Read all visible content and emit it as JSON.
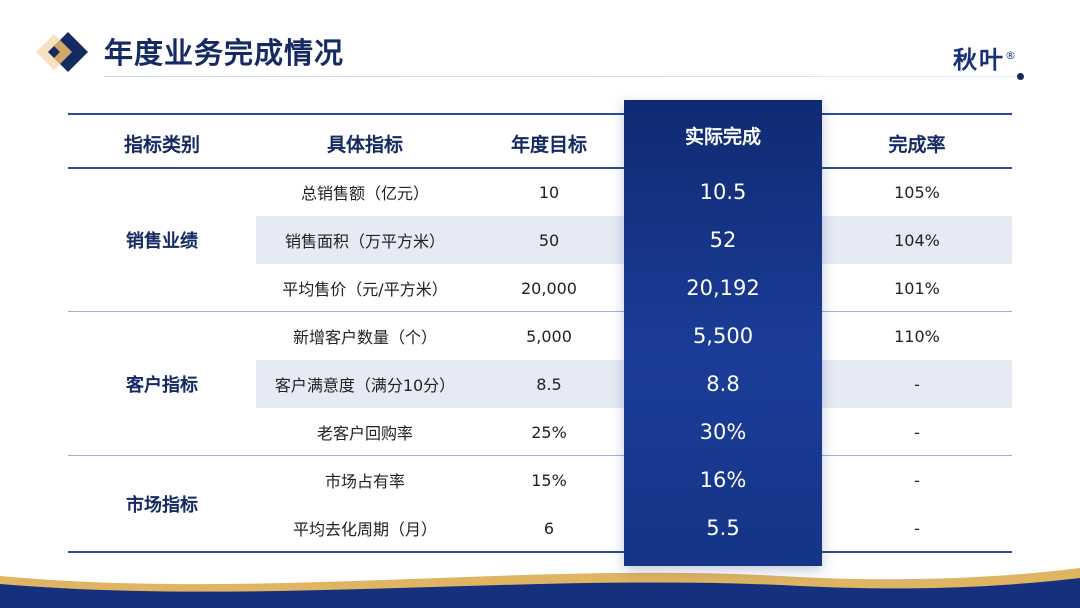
{
  "header": {
    "title": "年度业务完成情况",
    "brand": "秋叶",
    "brand_mark": "®"
  },
  "colors": {
    "navy": "#152a63",
    "highlight": "#1a3d98",
    "band": "#e5eaf4",
    "gold": "#d9a748"
  },
  "table": {
    "columns": [
      "指标类别",
      "具体指标",
      "年度目标",
      "实际完成",
      "完成率"
    ],
    "groups": [
      {
        "category": "销售业绩",
        "rows": [
          {
            "name": "总销售额（亿元）",
            "target": "10",
            "actual": "10.5",
            "rate": "105%"
          },
          {
            "name": "销售面积（万平方米）",
            "target": "50",
            "actual": "52",
            "rate": "104%"
          },
          {
            "name": "平均售价（元/平方米）",
            "target": "20,000",
            "actual": "20,192",
            "rate": "101%"
          }
        ]
      },
      {
        "category": "客户指标",
        "rows": [
          {
            "name": "新增客户数量（个）",
            "target": "5,000",
            "actual": "5,500",
            "rate": "110%"
          },
          {
            "name": "客户满意度（满分10分）",
            "target": "8.5",
            "actual": "8.8",
            "rate": "-"
          },
          {
            "name": "老客户回购率",
            "target": "25%",
            "actual": "30%",
            "rate": "-"
          }
        ]
      },
      {
        "category": "市场指标",
        "rows": [
          {
            "name": "市场占有率",
            "target": "15%",
            "actual": "16%",
            "rate": "-"
          },
          {
            "name": "平均去化周期（月）",
            "target": "6",
            "actual": "5.5",
            "rate": "-"
          }
        ]
      }
    ]
  }
}
